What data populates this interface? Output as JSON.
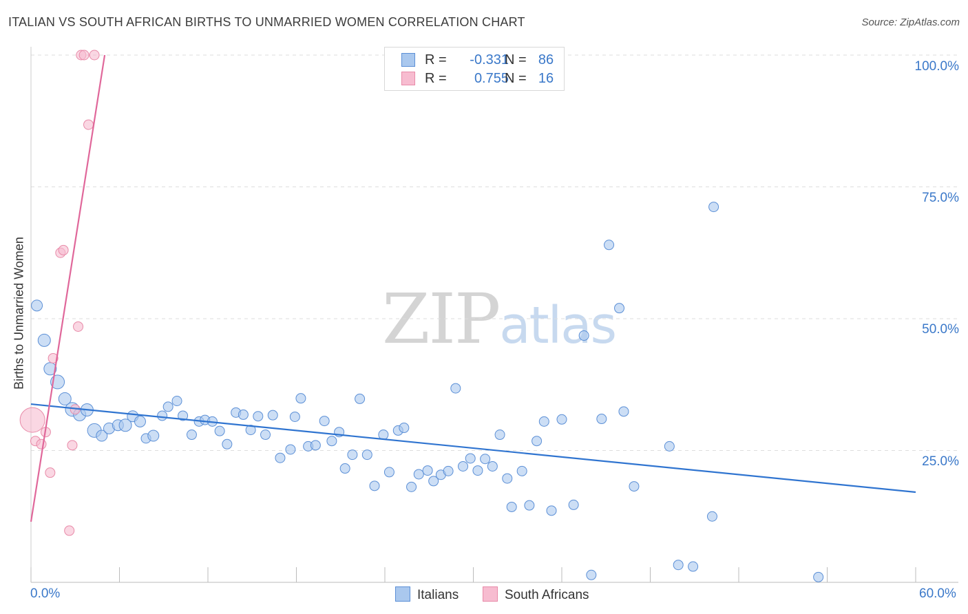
{
  "title": "ITALIAN VS SOUTH AFRICAN BIRTHS TO UNMARRIED WOMEN CORRELATION CHART",
  "source": "Source: ZipAtlas.com",
  "watermark": {
    "zip": "ZIP",
    "atlas": "atlas"
  },
  "legend": {
    "italians": {
      "r_label": "R =",
      "r_value": "-0.331",
      "n_label": "N =",
      "n_value": "86"
    },
    "south_africans": {
      "r_label": "R =",
      "r_value": "0.755",
      "n_label": "N =",
      "n_value": "16"
    }
  },
  "bottom_legend": {
    "italians": "Italians",
    "south_africans": "South Africans"
  },
  "colors": {
    "italians_fill": "#aac8ee",
    "italians_stroke": "#5b8fd6",
    "italians_line": "#2f74d0",
    "sa_fill": "#f7bcd0",
    "sa_stroke": "#e88aa8",
    "sa_line": "#e0679a",
    "grid": "#dddddd",
    "axis_text": "#3a78c9"
  },
  "chart_data": {
    "type": "scatter",
    "title": "ITALIAN VS SOUTH AFRICAN BIRTHS TO UNMARRIED WOMEN CORRELATION CHART",
    "xlabel": "",
    "ylabel": "Births to Unmarried Women",
    "xlim": [
      0,
      60
    ],
    "ylim": [
      0,
      100
    ],
    "x_tick_labels": [
      "0.0%",
      "60.0%"
    ],
    "y_ticks": [
      25,
      50,
      75,
      100
    ],
    "y_tick_labels": [
      "25.0%",
      "50.0%",
      "75.0%",
      "100.0%"
    ],
    "series": [
      {
        "name": "Italians",
        "points": [
          [
            0.4,
            52.5,
            8
          ],
          [
            0.9,
            45.9,
            9
          ],
          [
            1.3,
            40.5,
            9
          ],
          [
            1.8,
            38.0,
            10
          ],
          [
            2.3,
            34.8,
            9
          ],
          [
            2.8,
            32.8,
            10
          ],
          [
            3.3,
            31.8,
            9
          ],
          [
            3.8,
            32.7,
            9
          ],
          [
            4.3,
            28.8,
            10
          ],
          [
            4.8,
            27.8,
            8
          ],
          [
            5.3,
            29.2,
            8
          ],
          [
            5.9,
            29.8,
            8
          ],
          [
            6.4,
            29.8,
            9
          ],
          [
            6.9,
            31.5,
            8
          ],
          [
            7.4,
            30.5,
            8
          ],
          [
            7.8,
            27.3,
            7
          ],
          [
            8.3,
            27.8,
            8
          ],
          [
            8.9,
            31.6,
            7
          ],
          [
            9.3,
            33.3,
            7
          ],
          [
            9.9,
            34.4,
            7
          ],
          [
            10.3,
            31.6,
            7
          ],
          [
            10.9,
            28.0,
            7
          ],
          [
            11.4,
            30.5,
            7
          ],
          [
            11.8,
            30.8,
            7
          ],
          [
            12.3,
            30.5,
            7
          ],
          [
            12.8,
            28.7,
            7
          ],
          [
            13.3,
            26.2,
            7
          ],
          [
            13.9,
            32.2,
            7
          ],
          [
            14.4,
            31.8,
            7
          ],
          [
            14.9,
            28.9,
            7
          ],
          [
            15.4,
            31.5,
            7
          ],
          [
            15.9,
            28.0,
            7
          ],
          [
            16.4,
            31.7,
            7
          ],
          [
            16.9,
            23.6,
            7
          ],
          [
            17.6,
            25.2,
            7
          ],
          [
            17.9,
            31.4,
            7
          ],
          [
            18.3,
            34.9,
            7
          ],
          [
            18.8,
            25.8,
            7
          ],
          [
            19.3,
            26.0,
            7
          ],
          [
            19.9,
            30.6,
            7
          ],
          [
            20.4,
            26.8,
            7
          ],
          [
            20.9,
            28.5,
            7
          ],
          [
            21.3,
            21.6,
            7
          ],
          [
            21.8,
            24.2,
            7
          ],
          [
            22.3,
            34.8,
            7
          ],
          [
            22.8,
            24.2,
            7
          ],
          [
            23.3,
            18.3,
            7
          ],
          [
            23.9,
            28.0,
            7
          ],
          [
            24.3,
            20.9,
            7
          ],
          [
            24.9,
            28.8,
            7
          ],
          [
            25.3,
            29.3,
            7
          ],
          [
            25.8,
            18.1,
            7
          ],
          [
            26.3,
            20.5,
            7
          ],
          [
            26.9,
            21.2,
            7
          ],
          [
            27.3,
            19.2,
            7
          ],
          [
            27.8,
            20.4,
            7
          ],
          [
            28.3,
            21.1,
            7
          ],
          [
            28.8,
            36.8,
            7
          ],
          [
            29.3,
            22.0,
            7
          ],
          [
            29.8,
            23.5,
            7
          ],
          [
            30.3,
            21.2,
            7
          ],
          [
            30.8,
            23.4,
            7
          ],
          [
            31.3,
            22.0,
            7
          ],
          [
            31.8,
            28.0,
            7
          ],
          [
            32.3,
            19.7,
            7
          ],
          [
            32.6,
            14.3,
            7
          ],
          [
            33.3,
            21.1,
            7
          ],
          [
            33.8,
            14.6,
            7
          ],
          [
            34.3,
            26.8,
            7
          ],
          [
            34.8,
            30.5,
            7
          ],
          [
            35.3,
            13.6,
            7
          ],
          [
            36.0,
            30.9,
            7
          ],
          [
            36.8,
            14.7,
            7
          ],
          [
            37.5,
            46.8,
            7
          ],
          [
            38.0,
            1.4,
            7
          ],
          [
            38.7,
            31.0,
            7
          ],
          [
            39.2,
            64.0,
            7
          ],
          [
            39.9,
            52.0,
            7
          ],
          [
            40.2,
            32.4,
            7
          ],
          [
            40.9,
            18.2,
            7
          ],
          [
            43.3,
            25.8,
            7
          ],
          [
            43.9,
            3.3,
            7
          ],
          [
            44.9,
            3.0,
            7
          ],
          [
            46.2,
            12.5,
            7
          ],
          [
            46.3,
            71.2,
            7
          ],
          [
            53.4,
            1.0,
            7
          ]
        ],
        "trend": {
          "x0": 0,
          "y0": 33.8,
          "x1": 60,
          "y1": 17.1
        }
      },
      {
        "name": "South Africans",
        "points": [
          [
            0.1,
            30.8,
            18
          ],
          [
            0.3,
            26.8,
            7
          ],
          [
            0.7,
            26.2,
            7
          ],
          [
            1.0,
            28.5,
            7
          ],
          [
            1.3,
            20.8,
            7
          ],
          [
            1.5,
            42.5,
            7
          ],
          [
            2.0,
            62.5,
            7
          ],
          [
            2.2,
            63.0,
            7
          ],
          [
            2.6,
            9.8,
            7
          ],
          [
            2.8,
            26.0,
            7
          ],
          [
            3.0,
            32.8,
            7
          ],
          [
            3.2,
            48.5,
            7
          ],
          [
            3.4,
            100,
            7
          ],
          [
            3.6,
            100,
            7
          ],
          [
            3.9,
            86.8,
            7
          ],
          [
            4.3,
            100,
            7
          ]
        ],
        "trend": {
          "x0": 0,
          "y0": 11.5,
          "x1": 5.0,
          "y1": 100
        }
      }
    ]
  }
}
